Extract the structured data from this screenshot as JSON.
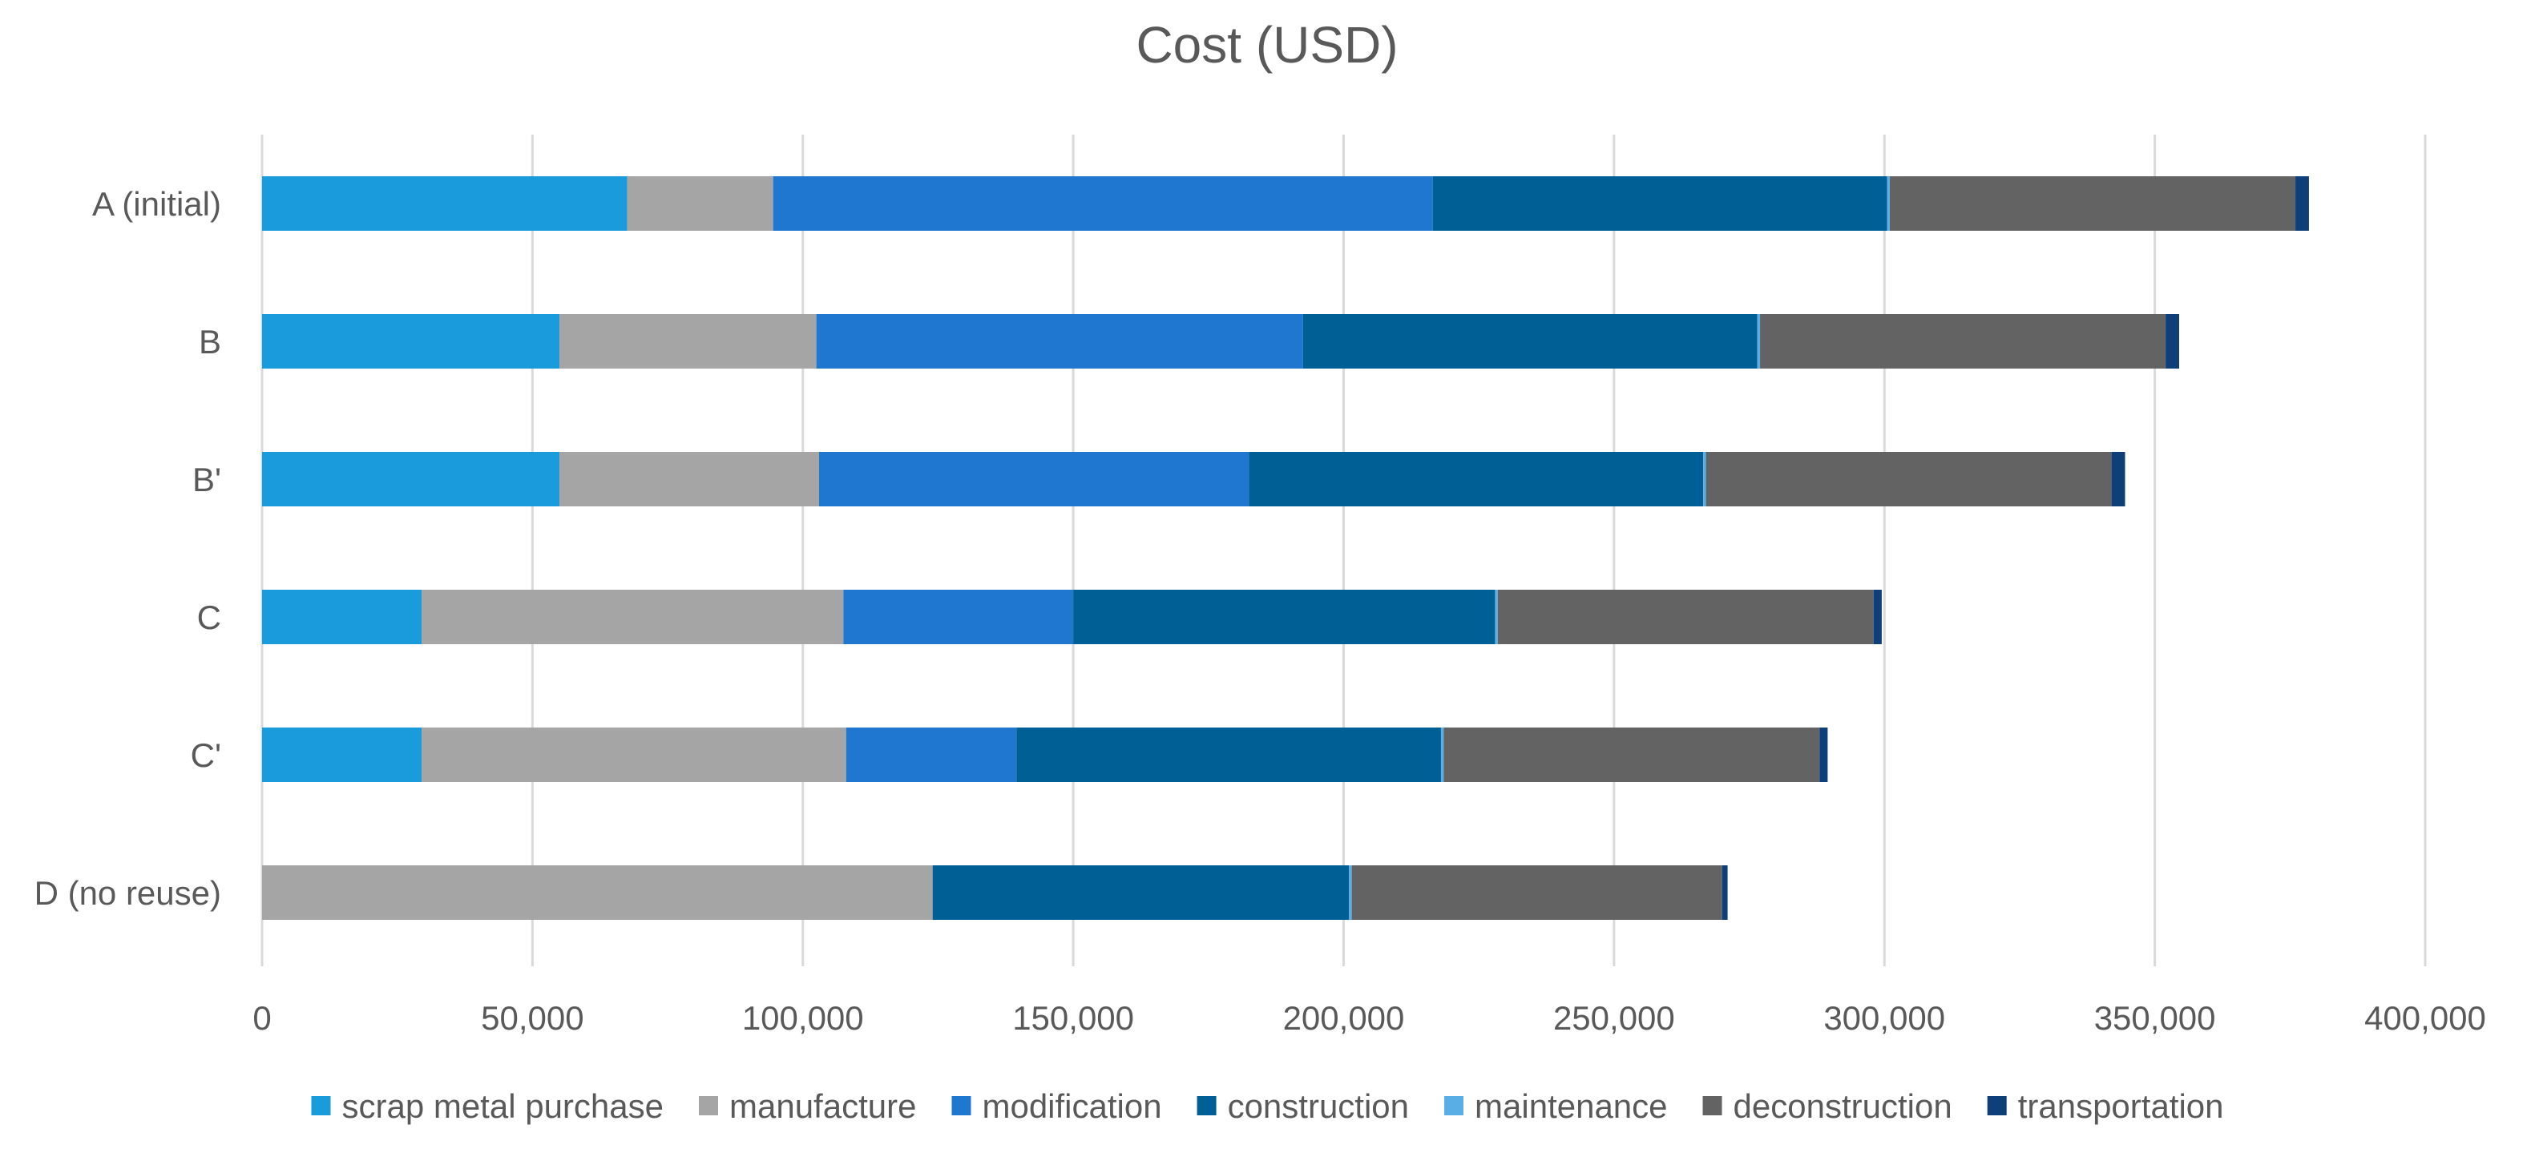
{
  "chart_data": {
    "type": "bar",
    "orientation": "horizontal",
    "stacked": true,
    "title": "Cost (USD)",
    "xlabel": "",
    "ylabel": "",
    "xlim": [
      0,
      400000
    ],
    "ticks": [
      0,
      50000,
      100000,
      150000,
      200000,
      250000,
      300000,
      350000,
      400000
    ],
    "tick_labels": [
      "0",
      "50,000",
      "100,000",
      "150,000",
      "200,000",
      "250,000",
      "300,000",
      "350,000",
      "400,000"
    ],
    "grid": true,
    "legend_position": "bottom",
    "categories": [
      "A (initial)",
      "B",
      "B'",
      "C",
      "C'",
      "D (no reuse)"
    ],
    "series": [
      {
        "name": "scrap metal purchase",
        "color": "#1a9bdc",
        "values": [
          67500,
          55000,
          55000,
          29500,
          29500,
          0
        ]
      },
      {
        "name": "manufacture",
        "color": "#a5a5a5",
        "values": [
          27000,
          47500,
          48000,
          78000,
          78500,
          124000
        ]
      },
      {
        "name": "modification",
        "color": "#1f77d0",
        "values": [
          122000,
          90000,
          79500,
          42500,
          31500,
          0
        ]
      },
      {
        "name": "construction",
        "color": "#005f94",
        "values": [
          84000,
          84000,
          84000,
          78000,
          78500,
          77000
        ]
      },
      {
        "name": "maintenance",
        "color": "#5aaee6",
        "values": [
          500,
          500,
          500,
          500,
          500,
          500
        ]
      },
      {
        "name": "deconstruction",
        "color": "#636363",
        "values": [
          75000,
          75000,
          75000,
          69500,
          69500,
          68500
        ]
      },
      {
        "name": "transportation",
        "color": "#0e3f78",
        "values": [
          2500,
          2500,
          2500,
          1500,
          1500,
          1000
        ]
      }
    ]
  }
}
